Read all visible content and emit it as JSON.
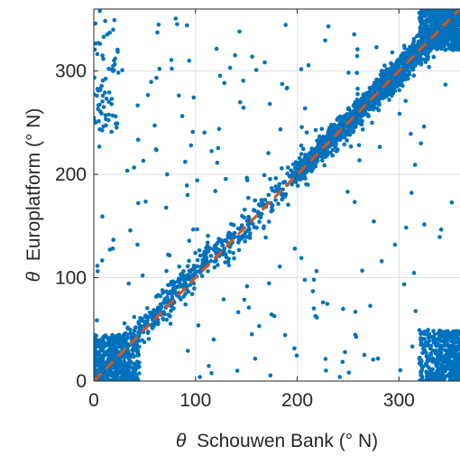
{
  "chart_data": {
    "type": "scatter",
    "title": "",
    "xlabel_symbol": "θ",
    "xlabel": "Schouwen Bank (° N)",
    "ylabel_symbol": "θ",
    "ylabel": "Europlatform (° N)",
    "xlim": [
      0,
      360
    ],
    "ylim": [
      0,
      360
    ],
    "xticks": [
      0,
      100,
      200,
      300
    ],
    "yticks": [
      0,
      100,
      200,
      300
    ],
    "xtick_labels": [
      "0",
      "100",
      "200",
      "300"
    ],
    "ytick_labels": [
      "0",
      "100",
      "200",
      "300"
    ],
    "grid": true,
    "point_color": "#0072BD",
    "reference_line": {
      "x": [
        0,
        360
      ],
      "y": [
        0,
        360
      ],
      "color": "#D95319",
      "style": "dashed"
    },
    "scatter_clusters": [
      {
        "region": "low-corner",
        "x": [
          0,
          45
        ],
        "y": [
          0,
          45
        ],
        "count": 420,
        "spread": "square"
      },
      {
        "region": "lower-diagonal",
        "x": [
          0,
          120
        ],
        "y": [
          0,
          130
        ],
        "count": 380,
        "spread": "diagonal",
        "width": 22
      },
      {
        "region": "mid-diagonal",
        "x": [
          120,
          200
        ],
        "y": [
          120,
          200
        ],
        "count": 160,
        "spread": "diagonal",
        "width": 25
      },
      {
        "region": "dense-diagonal",
        "x": [
          200,
          300
        ],
        "y": [
          200,
          300
        ],
        "count": 900,
        "spread": "diagonal",
        "width": 18
      },
      {
        "region": "upper-diagonal",
        "x": [
          280,
          360
        ],
        "y": [
          280,
          360
        ],
        "count": 650,
        "spread": "diagonal",
        "width": 22
      },
      {
        "region": "upper-right-corner",
        "x": [
          320,
          360
        ],
        "y": [
          320,
          360
        ],
        "count": 500,
        "spread": "square"
      },
      {
        "region": "lower-right-corner",
        "x": [
          320,
          360
        ],
        "y": [
          0,
          50
        ],
        "count": 420,
        "spread": "square"
      },
      {
        "region": "upper-left-edge",
        "x": [
          0,
          25
        ],
        "y": [
          240,
          360
        ],
        "count": 60,
        "spread": "square"
      },
      {
        "region": "scattered",
        "x": [
          0,
          360
        ],
        "y": [
          0,
          360
        ],
        "count": 220,
        "spread": "uniform"
      }
    ]
  }
}
